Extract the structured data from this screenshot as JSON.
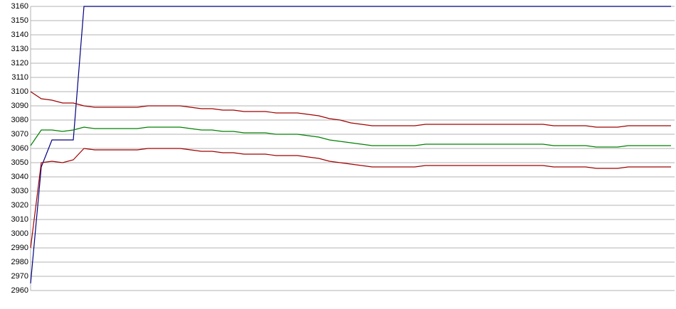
{
  "chart_data": {
    "type": "line",
    "categories": [
      null,
      null,
      null,
      null,
      null,
      null,
      null,
      null,
      null,
      null,
      null,
      null,
      null,
      null,
      null,
      null,
      null,
      null,
      null,
      null,
      null,
      null,
      null,
      null,
      null,
      null,
      null,
      null,
      null,
      null,
      null,
      null,
      null,
      null,
      null,
      null,
      null,
      null,
      null,
      null,
      null,
      null,
      null,
      null,
      null,
      null,
      null,
      null,
      null,
      null,
      null,
      null,
      null,
      null,
      null,
      null,
      null,
      null,
      null,
      null,
      null
    ],
    "ylim": [
      2960,
      3160
    ],
    "yticks": [
      2960,
      2970,
      2980,
      2990,
      3000,
      3010,
      3020,
      3030,
      3040,
      3050,
      3060,
      3070,
      3080,
      3090,
      3100,
      3110,
      3120,
      3130,
      3140,
      3150,
      3160
    ],
    "grid": true,
    "series": [
      {
        "color": "#000080",
        "values": [
          2965,
          3047,
          3066,
          3066,
          3066,
          3160,
          3160,
          3160,
          3160,
          3160,
          3160,
          3160,
          3160,
          3160,
          3160,
          3160,
          3160,
          3160,
          3160,
          3160,
          3160,
          3160,
          3160,
          3160,
          3160,
          3160,
          3160,
          3160,
          3160,
          3160,
          3160,
          3160,
          3160,
          3160,
          3160,
          3160,
          3160,
          3160,
          3160,
          3160,
          3160,
          3160,
          3160,
          3160,
          3160,
          3160,
          3160,
          3160,
          3160,
          3160,
          3160,
          3160,
          3160,
          3160,
          3160,
          3160,
          3160,
          3160,
          3160,
          3160,
          3160
        ]
      },
      {
        "color": "#a00000",
        "values": [
          3100,
          3095,
          3094,
          3092,
          3092,
          3090,
          3089,
          3089,
          3089,
          3089,
          3089,
          3090,
          3090,
          3090,
          3090,
          3089,
          3088,
          3088,
          3087,
          3087,
          3086,
          3086,
          3086,
          3085,
          3085,
          3085,
          3084,
          3083,
          3081,
          3080,
          3078,
          3077,
          3076,
          3076,
          3076,
          3076,
          3076,
          3077,
          3077,
          3077,
          3077,
          3077,
          3077,
          3077,
          3077,
          3077,
          3077,
          3077,
          3077,
          3076,
          3076,
          3076,
          3076,
          3075,
          3075,
          3075,
          3076,
          3076,
          3076,
          3076,
          3076
        ]
      },
      {
        "color": "#008000",
        "values": [
          3062,
          3073,
          3073,
          3072,
          3073,
          3075,
          3074,
          3074,
          3074,
          3074,
          3074,
          3075,
          3075,
          3075,
          3075,
          3074,
          3073,
          3073,
          3072,
          3072,
          3071,
          3071,
          3071,
          3070,
          3070,
          3070,
          3069,
          3068,
          3066,
          3065,
          3064,
          3063,
          3062,
          3062,
          3062,
          3062,
          3062,
          3063,
          3063,
          3063,
          3063,
          3063,
          3063,
          3063,
          3063,
          3063,
          3063,
          3063,
          3063,
          3062,
          3062,
          3062,
          3062,
          3061,
          3061,
          3061,
          3062,
          3062,
          3062,
          3062,
          3062
        ]
      },
      {
        "color": "#a00000",
        "values": [
          2990,
          3050,
          3051,
          3050,
          3052,
          3060,
          3059,
          3059,
          3059,
          3059,
          3059,
          3060,
          3060,
          3060,
          3060,
          3059,
          3058,
          3058,
          3057,
          3057,
          3056,
          3056,
          3056,
          3055,
          3055,
          3055,
          3054,
          3053,
          3051,
          3050,
          3049,
          3048,
          3047,
          3047,
          3047,
          3047,
          3047,
          3048,
          3048,
          3048,
          3048,
          3048,
          3048,
          3048,
          3048,
          3048,
          3048,
          3048,
          3048,
          3047,
          3047,
          3047,
          3047,
          3046,
          3046,
          3046,
          3047,
          3047,
          3047,
          3047,
          3047
        ]
      }
    ]
  }
}
